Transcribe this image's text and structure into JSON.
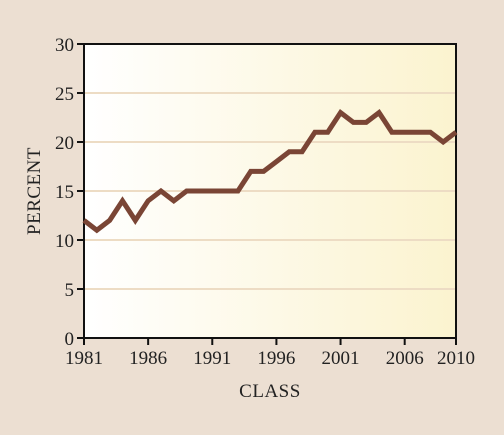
{
  "colors": {
    "background": "#ecdfd2",
    "plot_fill_left": "#ffffff",
    "plot_fill_right": "#fbf3cf",
    "gridline": "#eddcc4",
    "line": "#7a4535",
    "axis": "#111111"
  },
  "chart_data": {
    "type": "line",
    "title": "",
    "xlabel": "CLASS",
    "ylabel": "PERCENT",
    "xlim": [
      1981,
      2010
    ],
    "ylim": [
      0,
      30
    ],
    "x_ticks": [
      1981,
      1986,
      1991,
      1996,
      2001,
      2006,
      2010
    ],
    "x_tick_labels": [
      "1981",
      "1986",
      "1991",
      "1996",
      "2001",
      "2006",
      "2010"
    ],
    "y_ticks": [
      0,
      5,
      10,
      15,
      20,
      25,
      30
    ],
    "y_tick_labels": [
      "0",
      "5",
      "10",
      "15",
      "20",
      "25",
      "30"
    ],
    "grid": "horizontal",
    "series": [
      {
        "x": [
          1981,
          1982,
          1983,
          1984,
          1985,
          1986,
          1987,
          1988,
          1989,
          1990,
          1991,
          1992,
          1993,
          1994,
          1995,
          1996,
          1997,
          1998,
          1999,
          2000,
          2001,
          2002,
          2003,
          2004,
          2005,
          2006,
          2007,
          2008,
          2009,
          2010
        ],
        "values": [
          12,
          11,
          12,
          14,
          12,
          14,
          15,
          14,
          15,
          15,
          15,
          15,
          15,
          17,
          17,
          18,
          19,
          19,
          21,
          21,
          23,
          22,
          22,
          23,
          21,
          21,
          21,
          21,
          20,
          21
        ]
      }
    ]
  }
}
